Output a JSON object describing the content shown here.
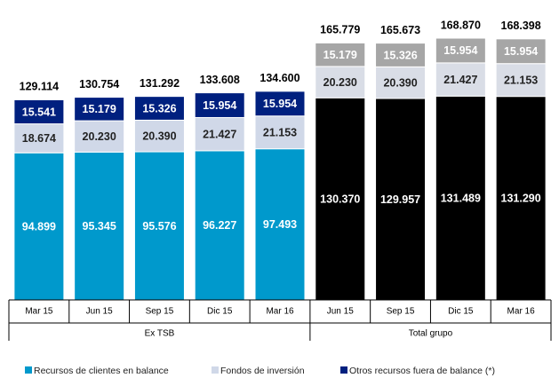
{
  "chart_data": {
    "type": "stacked_bar",
    "categories": [
      "Mar 15",
      "Jun 15",
      "Sep 15",
      "Dic 15",
      "Mar 16",
      "Jun 15",
      "Sep 15",
      "Dic 15",
      "Mar 16"
    ],
    "groups": [
      {
        "name": "Ex TSB",
        "size": 5,
        "colors": [
          "#0099cc",
          "#d0d8e8",
          "#00207f"
        ]
      },
      {
        "name": "Total grupo",
        "size": 4,
        "colors": [
          "#000000",
          "#d9dde6",
          "#a6a6a6"
        ]
      }
    ],
    "series": [
      {
        "name": "Recursos de clientes en balance",
        "color": "#0099cc",
        "values": [
          94.899,
          95.345,
          95.576,
          96.227,
          97.493,
          130.37,
          129.957,
          131.489,
          131.29
        ]
      },
      {
        "name": "Fondos de inversión",
        "color": "#d0d8e8",
        "values": [
          18.674,
          20.23,
          20.39,
          21.427,
          21.153,
          20.23,
          20.39,
          21.427,
          21.153
        ]
      },
      {
        "name": "Otros recursos fuera de balance (*)",
        "color": "#00207f",
        "values": [
          15.541,
          15.179,
          15.326,
          15.954,
          15.954,
          15.179,
          15.326,
          15.954,
          15.954
        ]
      }
    ],
    "totals": [
      129.114,
      130.754,
      131.292,
      133.608,
      134.6,
      165.779,
      165.673,
      168.87,
      168.398
    ]
  }
}
